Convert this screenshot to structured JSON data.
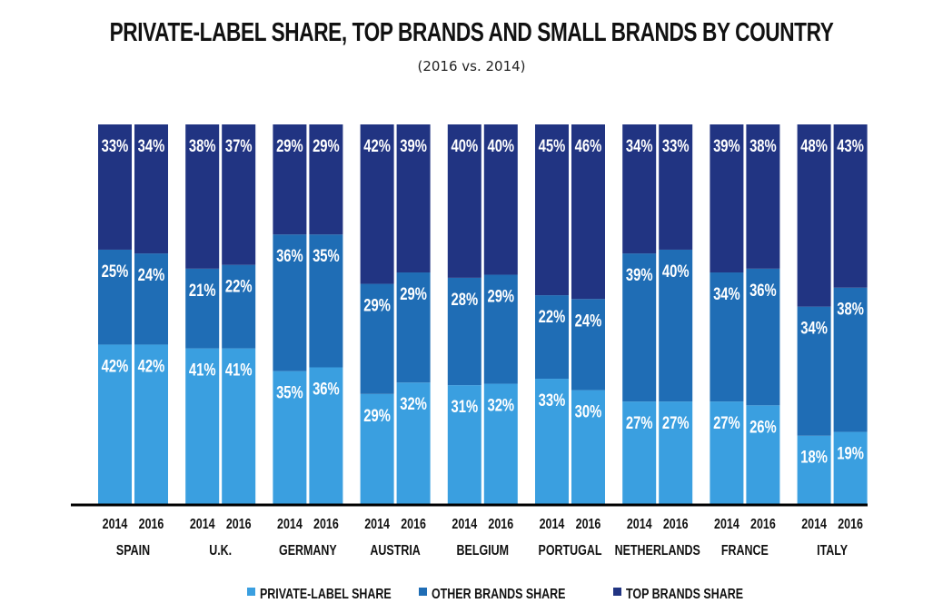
{
  "chart_data": {
    "type": "bar",
    "stacked": true,
    "title": "PRIVATE-LABEL SHARE, TOP BRANDS AND SMALL BRANDS BY COUNTRY",
    "subtitle": "(2016 vs. 2014)",
    "xlabel": "",
    "ylabel": "",
    "ylim": [
      0,
      100
    ],
    "grid": false,
    "legend_position": "bottom",
    "years": [
      "2014",
      "2016"
    ],
    "categories": [
      "SPAIN",
      "U.K.",
      "GERMANY",
      "AUSTRIA",
      "BELGIUM",
      "PORTUGAL",
      "NETHERLANDS",
      "FRANCE",
      "ITALY"
    ],
    "series": [
      {
        "name": "PRIVATE-LABEL SHARE",
        "color": "#3a9fe0",
        "values_2014": [
          42,
          41,
          35,
          29,
          31,
          33,
          27,
          27,
          18
        ],
        "values_2016": [
          42,
          41,
          36,
          32,
          32,
          30,
          27,
          26,
          19
        ]
      },
      {
        "name": "OTHER BRANDS SHARE",
        "color": "#1f6db5",
        "values_2014": [
          25,
          21,
          36,
          29,
          28,
          22,
          39,
          34,
          34
        ],
        "values_2016": [
          24,
          22,
          35,
          29,
          29,
          24,
          40,
          36,
          38
        ]
      },
      {
        "name": "TOP BRANDS SHARE",
        "color": "#213482",
        "values_2014": [
          33,
          38,
          29,
          42,
          40,
          45,
          34,
          39,
          48
        ],
        "values_2016": [
          34,
          37,
          29,
          39,
          40,
          46,
          33,
          38,
          43
        ]
      }
    ]
  }
}
